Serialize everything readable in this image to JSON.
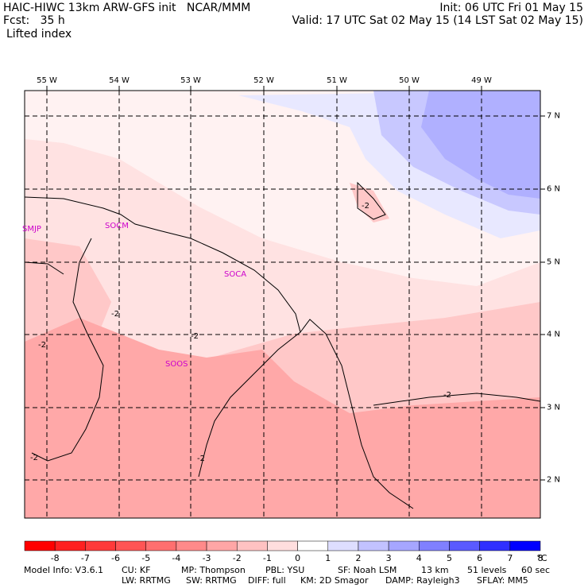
{
  "header": {
    "left_line1": "HAIC-HIWC 13km ARW-GFS init   NCAR/MMM",
    "left_line2": "Fcst:   35 h",
    "left_line3": "Lifted index",
    "right_line1": "Init: 06 UTC Fri 01 May 15",
    "right_line2": "Valid: 17 UTC Sat 02 May 15 (14 LST Sat 02 May 15)"
  },
  "lon_labels": [
    "55 W",
    "54 W",
    "53 W",
    "52 W",
    "51 W",
    "50 W",
    "49 W"
  ],
  "lat_labels": [
    "7 N",
    "6 N",
    "5 N",
    "4 N",
    "3 N",
    "2 N"
  ],
  "stations": {
    "smjp": "SMJP",
    "socm": "SOCM",
    "soca": "SOCA",
    "soos": "SOOS"
  },
  "contour_labels": [
    "-2",
    "-2",
    "-2",
    "-2",
    "-2",
    "-2",
    "-2"
  ],
  "colorbar": {
    "levels": [
      "-8",
      "-7",
      "-6",
      "-5",
      "-4",
      "-3",
      "-2",
      "-1",
      "0",
      "1",
      "2",
      "3",
      "4",
      "5",
      "6",
      "7",
      "8"
    ],
    "unit": "°C",
    "colors": [
      "#ff0000",
      "#ff2020",
      "#ff3a3a",
      "#ff5555",
      "#ff6f6f",
      "#ff8a8a",
      "#ffa6a6",
      "#ffc2c2",
      "#ffdede",
      "#ffffff",
      "#dedeff",
      "#c2c2ff",
      "#a6a6ff",
      "#8080ff",
      "#5a5aff",
      "#3030ff",
      "#0000ff"
    ]
  },
  "field_colors": {
    "deep_neg": "#ffa8a8",
    "mid_neg": "#ffc8c8",
    "light_neg": "#ffe2e2",
    "zero": "#fff2f2",
    "light_pos": "#e8e8ff",
    "mid_pos": "#c8c8ff",
    "strong_pos": "#b0b0ff"
  },
  "footer": {
    "line1_model": "Model Info: V3.6.1",
    "line1_cu": "CU: KF",
    "line1_mp": "MP: Thompson",
    "line1_pbl": "PBL: YSU",
    "line1_sf": "SF: Noah LSM",
    "line1_res": "13 km",
    "line1_levels": "51 levels",
    "line1_dt": "60 sec",
    "line2_lw": "LW: RRTMG",
    "line2_sw": "SW: RRTMG",
    "line2_diff": "DIFF: full",
    "line2_km": "KM: 2D Smagor",
    "line2_damp": "DAMP: Rayleigh3",
    "line2_sflay": "SFLAY: MM5"
  }
}
